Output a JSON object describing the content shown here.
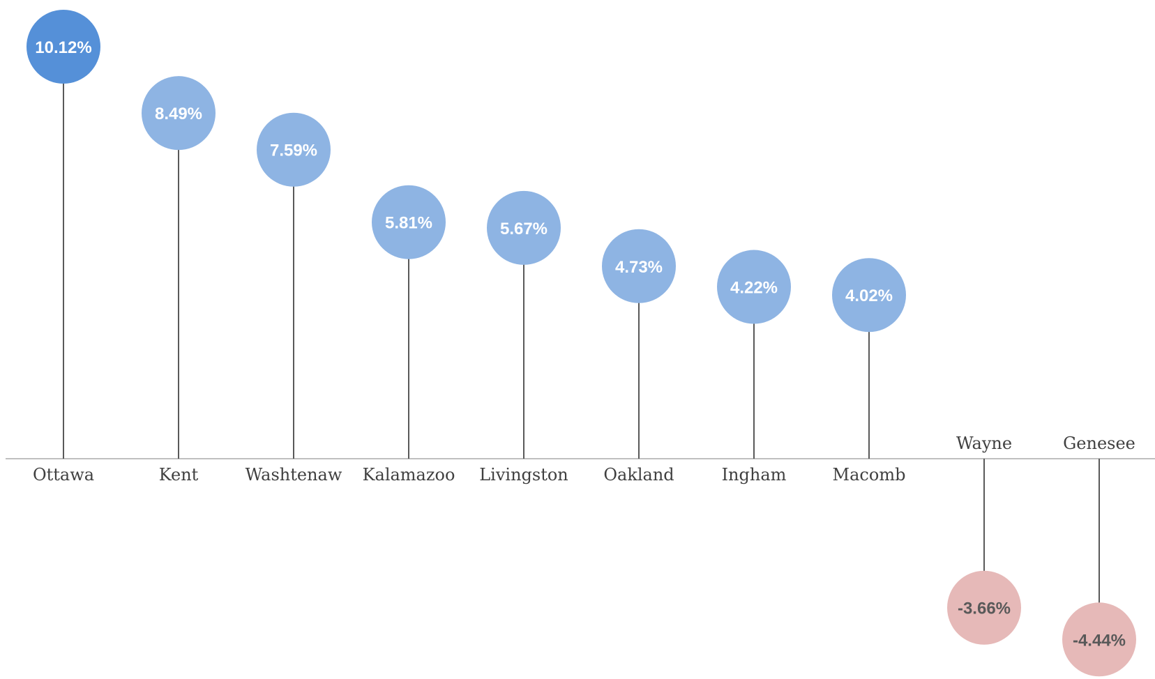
{
  "chart_data": {
    "type": "lollipop",
    "categories": [
      "Ottawa",
      "Kent",
      "Washtenaw",
      "Kalamazoo",
      "Livingston",
      "Oakland",
      "Ingham",
      "Macomb",
      "Wayne",
      "Genesee"
    ],
    "values": [
      10.12,
      8.49,
      7.59,
      5.81,
      5.67,
      4.73,
      4.22,
      4.02,
      -3.66,
      -4.44
    ],
    "value_labels": [
      "10.12%",
      "8.49%",
      "7.59%",
      "5.81%",
      "5.67%",
      "4.73%",
      "4.22%",
      "4.02%",
      "-3.66%",
      "-4.44%"
    ],
    "title": "",
    "xlabel": "",
    "ylabel": "",
    "grid": false,
    "legend": "none",
    "colors": {
      "highlight": "#5590D8",
      "positive": "#8EB4E3",
      "negative": "#E6B9B8",
      "positive_text": "#FFFFFF",
      "negative_text": "#595959",
      "stem": "#595959",
      "axis": "#BFBFBF"
    }
  }
}
